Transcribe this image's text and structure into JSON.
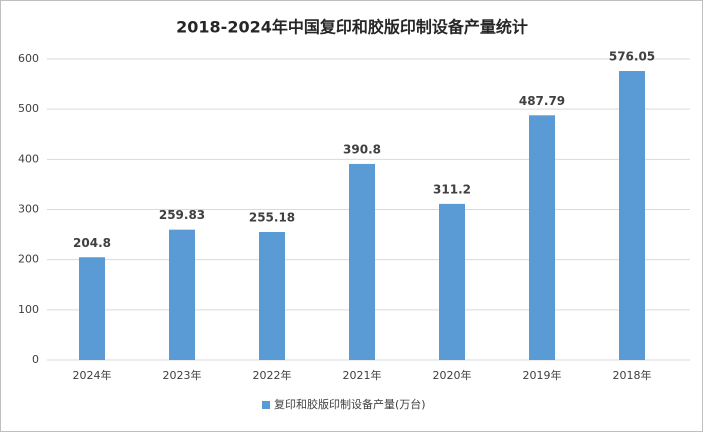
{
  "chart_data": {
    "type": "bar",
    "title": "2018-2024年中国复印和胶版印制设备产量统计",
    "categories": [
      "2024年",
      "2023年",
      "2022年",
      "2021年",
      "2020年",
      "2019年",
      "2018年"
    ],
    "series": [
      {
        "name": "复印和胶版印制设备产量(万台)",
        "color": "#5b9bd5",
        "values": [
          204.8,
          259.83,
          255.18,
          390.8,
          311.2,
          487.79,
          576.05
        ]
      }
    ],
    "ylim": [
      0,
      600
    ],
    "yticks": [
      0,
      100,
      200,
      300,
      400,
      500,
      600
    ],
    "grid": true,
    "legend": "bottom"
  }
}
